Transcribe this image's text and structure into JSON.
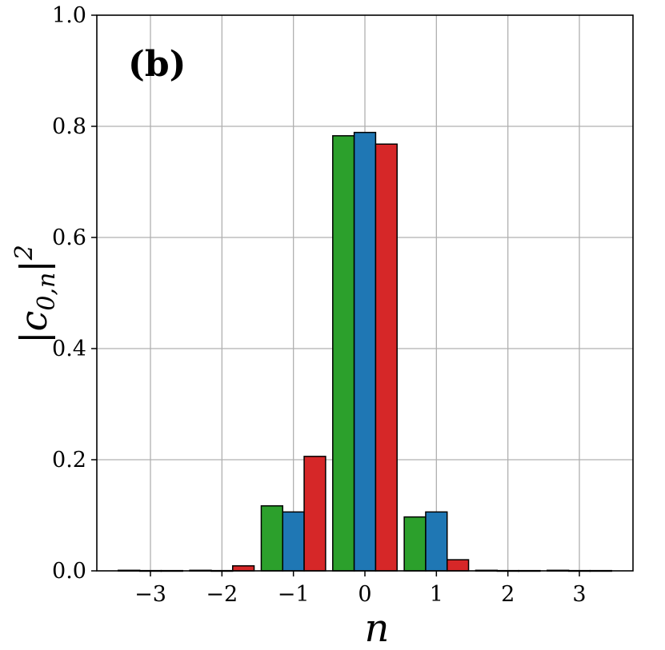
{
  "chart_data": {
    "type": "bar",
    "panel_label": "(b)",
    "xlabel": "n",
    "ylabel": {
      "base": "|c",
      "sub": "0,n",
      "rest": "|",
      "sup": "2"
    },
    "categories": [
      -3,
      -2,
      -1,
      0,
      1,
      2,
      3
    ],
    "xticks": [
      {
        "value": -3,
        "label": "−3"
      },
      {
        "value": -2,
        "label": "−2"
      },
      {
        "value": -1,
        "label": "−1"
      },
      {
        "value": 0,
        "label": "0"
      },
      {
        "value": 1,
        "label": "1"
      },
      {
        "value": 2,
        "label": "2"
      },
      {
        "value": 3,
        "label": "3"
      }
    ],
    "yticks": [
      {
        "value": 0.0,
        "label": "0.0"
      },
      {
        "value": 0.2,
        "label": "0.2"
      },
      {
        "value": 0.4,
        "label": "0.4"
      },
      {
        "value": 0.6,
        "label": "0.6"
      },
      {
        "value": 0.8,
        "label": "0.8"
      },
      {
        "value": 1.0,
        "label": "1.0"
      }
    ],
    "xlim": [
      -3.75,
      3.75
    ],
    "ylim": [
      0,
      1.0
    ],
    "grid": true,
    "series": [
      {
        "color": "#2ca02c",
        "values": [
          0.001,
          0.001,
          0.117,
          0.783,
          0.097,
          0.001,
          0.001
        ]
      },
      {
        "color": "#1f77b4",
        "values": [
          0.0005,
          0.0005,
          0.106,
          0.789,
          0.106,
          0.0005,
          0.0005
        ]
      },
      {
        "color": "#d62728",
        "values": [
          0.0005,
          0.009,
          0.206,
          0.768,
          0.02,
          0.0005,
          0.0005
        ]
      }
    ]
  }
}
